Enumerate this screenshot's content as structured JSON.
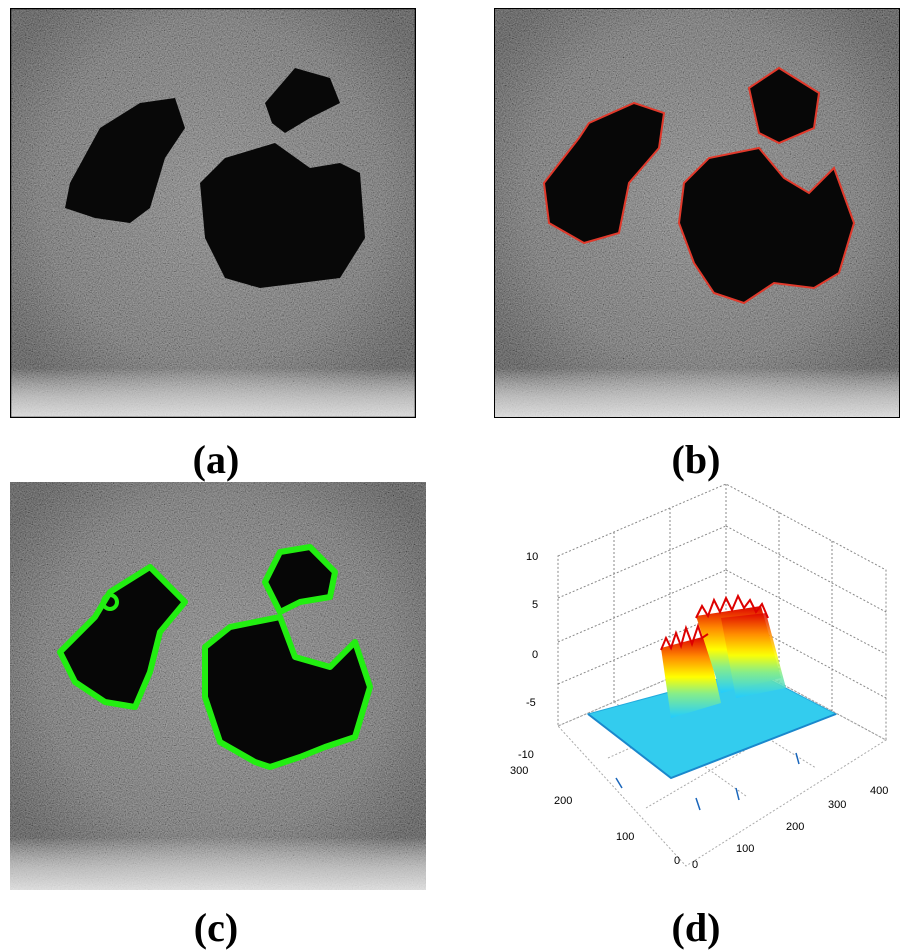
{
  "panels": [
    {
      "id": "a",
      "caption": "(a)",
      "description_icon": "ultrasound-image"
    },
    {
      "id": "b",
      "caption": "(b)",
      "description_icon": "ultrasound-red-contour",
      "contour_color": "#e0392b"
    },
    {
      "id": "c",
      "caption": "(c)",
      "description_icon": "ultrasound-green-contour",
      "contour_color": "#22ee11"
    },
    {
      "id": "d",
      "caption": "(d)",
      "description_icon": "surface-plot-3d"
    }
  ],
  "surface_plot": {
    "z_ticks": [
      "10",
      "5",
      "0",
      "-5",
      "-10"
    ],
    "y_ticks": [
      "300",
      "200",
      "100",
      "0"
    ],
    "x_ticks": [
      "0",
      "100",
      "200",
      "300",
      "400"
    ],
    "colormap": [
      "#00b4ff",
      "#66e0ff",
      "#ffff00",
      "#ff8800",
      "#dd0000"
    ]
  }
}
